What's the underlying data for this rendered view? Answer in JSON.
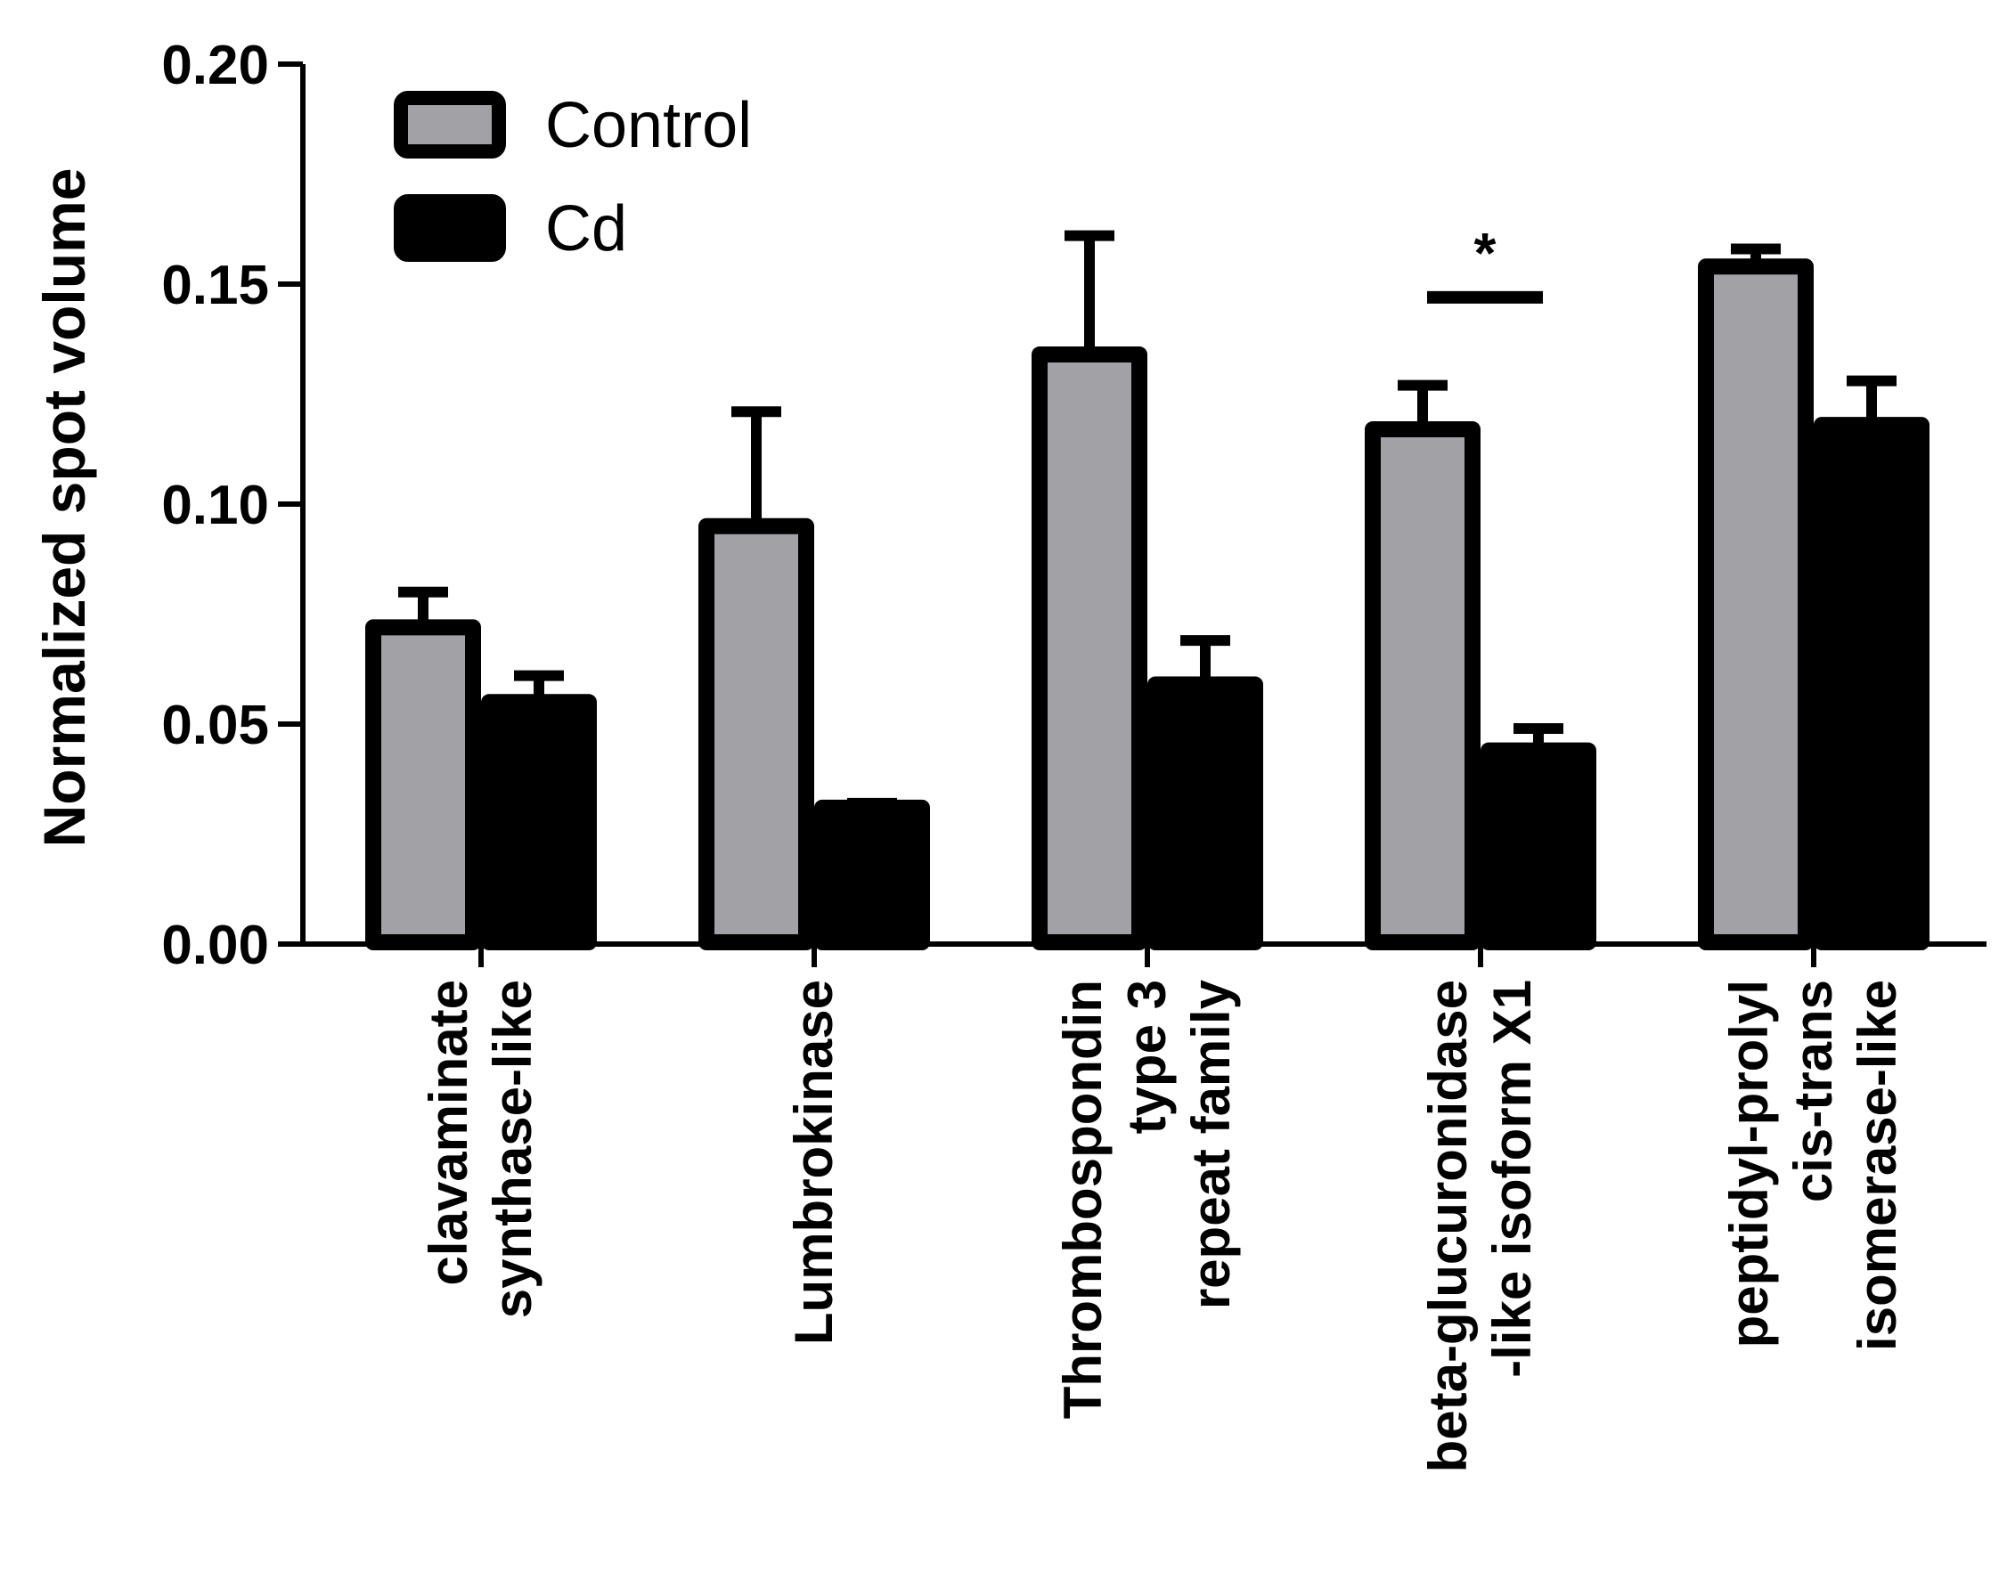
{
  "chart_data": {
    "type": "bar",
    "title": "",
    "xlabel": "",
    "ylabel": "Normalized spot volume",
    "ylim": [
      0,
      0.2
    ],
    "yticks": [
      0.0,
      0.05,
      0.1,
      0.15,
      0.2
    ],
    "ytick_labels": [
      "0.00",
      "0.05",
      "0.10",
      "0.15",
      "0.20"
    ],
    "categories": [
      [
        "clavaminate",
        "synthase-like"
      ],
      [
        "Lumbrokinase"
      ],
      [
        "Thrombospondin",
        "type 3",
        "repeat family"
      ],
      [
        "beta-glucuronidase",
        "-like isoform X1"
      ],
      [
        "peptidyl-prolyl",
        "cis-trans",
        "isomerase-like"
      ]
    ],
    "series": [
      {
        "name": "Control",
        "color": "#a2a1a6",
        "values": [
          0.072,
          0.095,
          0.134,
          0.117,
          0.154
        ],
        "errors": [
          0.008,
          0.026,
          0.027,
          0.01,
          0.004
        ]
      },
      {
        "name": "Cd",
        "color": "#000000",
        "values": [
          0.055,
          0.031,
          0.059,
          0.044,
          0.118
        ],
        "errors": [
          0.006,
          0.001,
          0.01,
          0.005,
          0.01
        ]
      }
    ],
    "legend": {
      "position": "top-left"
    },
    "significance": [
      {
        "category_index": 3,
        "label": "*",
        "y": 0.147
      }
    ]
  }
}
